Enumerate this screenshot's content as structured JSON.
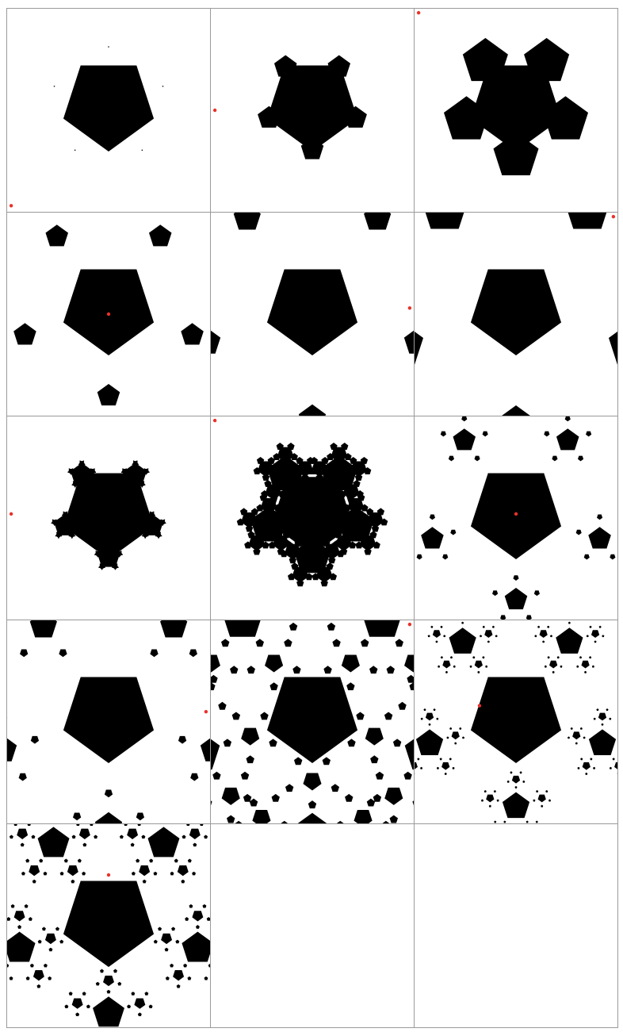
{
  "fill_color": "#000000",
  "marker_color": "#e8322a",
  "border_color": "#9a9a9a",
  "panels": [
    {
      "id": "p1",
      "icon": "pentagon-with-dots-icon",
      "ratio": 0.0,
      "type": "outer-dots",
      "depth": 0,
      "marker": [
        0.02,
        0.97
      ]
    },
    {
      "id": "p2",
      "icon": "pentagon-star-icon",
      "ratio": 0.25,
      "type": "star",
      "depth": 1,
      "marker": [
        0.02,
        0.5
      ]
    },
    {
      "id": "p3",
      "icon": "pentagon-flower-icon",
      "ratio": 0.5,
      "type": "star",
      "depth": 1,
      "marker": [
        0.02,
        0.02
      ]
    },
    {
      "id": "p4",
      "icon": "pentagon-ring-small-icon",
      "ratio": 0.25,
      "type": "ring",
      "depth": 1,
      "marker": [
        0.5,
        0.5
      ]
    },
    {
      "id": "p5",
      "icon": "pentagon-ring-medium-icon",
      "ratio": 0.3,
      "type": "ring-far",
      "depth": 1,
      "marker": [
        0.98,
        0.47
      ]
    },
    {
      "id": "p6",
      "icon": "pentagon-ring-large-icon",
      "ratio": 0.5,
      "type": "ring-far",
      "depth": 1,
      "marker": [
        0.98,
        0.02
      ]
    },
    {
      "id": "p7",
      "icon": "pentagon-fractal-small-icon",
      "ratio": 0.25,
      "type": "star",
      "depth": 3,
      "marker": [
        0.02,
        0.48
      ]
    },
    {
      "id": "p8",
      "icon": "pentagon-fractal-snow-icon",
      "ratio": 0.45,
      "type": "star",
      "depth": 3,
      "marker": [
        0.02,
        0.02
      ]
    },
    {
      "id": "p9",
      "icon": "pentagon-ring-fractal-icon",
      "ratio": 0.25,
      "type": "ring",
      "depth": 2,
      "marker": [
        0.5,
        0.48
      ]
    },
    {
      "id": "p10",
      "icon": "pentagon-ring-far-fractal-icon",
      "ratio": 0.3,
      "type": "ring-far",
      "depth": 2,
      "marker": [
        0.98,
        0.45
      ]
    },
    {
      "id": "p11",
      "icon": "pentagon-dense-tiling-icon",
      "ratio": 0.45,
      "type": "ring-far",
      "depth": 3,
      "marker": [
        0.98,
        0.02
      ]
    },
    {
      "id": "p12",
      "icon": "pentagon-ring-deep-icon",
      "ratio": 0.3,
      "type": "ring",
      "depth": 3,
      "marker": [
        0.32,
        0.42
      ]
    },
    {
      "id": "p13",
      "icon": "pentagon-ring-deeper-icon",
      "ratio": 0.35,
      "type": "ring",
      "depth": 3,
      "marker": [
        0.5,
        0.25
      ]
    },
    {
      "id": "p14",
      "icon": "empty-panel-icon",
      "type": "empty"
    },
    {
      "id": "p15",
      "icon": "empty-panel-icon",
      "type": "empty"
    }
  ]
}
